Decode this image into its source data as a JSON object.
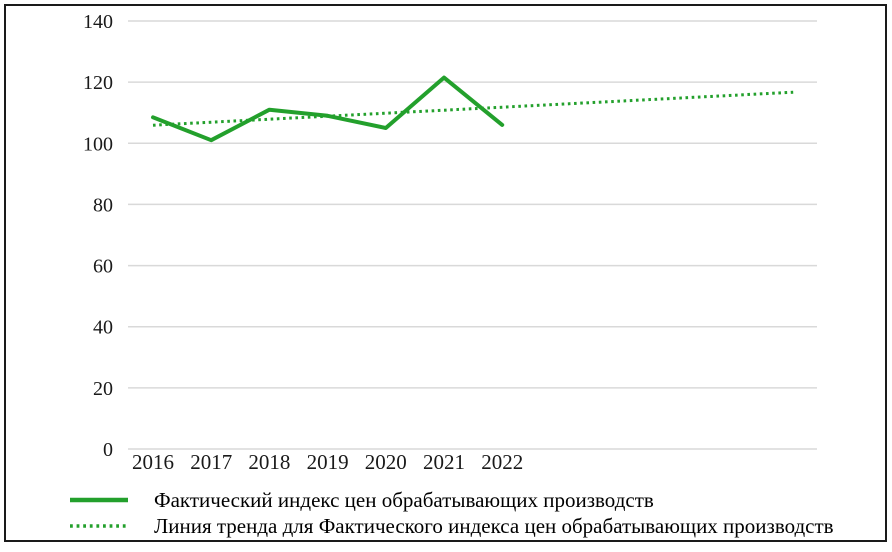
{
  "colors": {
    "series_green": "#23a02c",
    "gridline_gray": "#d9d9d9",
    "axis_text": "#1a1a1a",
    "frame_border": "#1a1a1a",
    "background": "#ffffff"
  },
  "chart_data": {
    "type": "line",
    "title": "",
    "xlabel": "",
    "ylabel": "",
    "categories": [
      "2016",
      "2017",
      "2018",
      "2019",
      "2020",
      "2021",
      "2022"
    ],
    "series": [
      {
        "name": "Фактический индекс цен обрабатывающих производств",
        "style": "solid",
        "values": [
          108.5,
          101,
          111,
          109,
          105,
          121.5,
          106
        ]
      },
      {
        "name": "Линия тренда для Фактического индекса цен обрабатывающих производств",
        "style": "dotted",
        "trend": true,
        "x_index_range": [
          0,
          11
        ],
        "values": [
          105.9,
          116.7
        ]
      }
    ],
    "ylim": [
      0,
      140
    ],
    "yticks": [
      0,
      20,
      40,
      60,
      80,
      100,
      120,
      140
    ],
    "grid": "horizontal",
    "legend_position": "bottom-left"
  }
}
